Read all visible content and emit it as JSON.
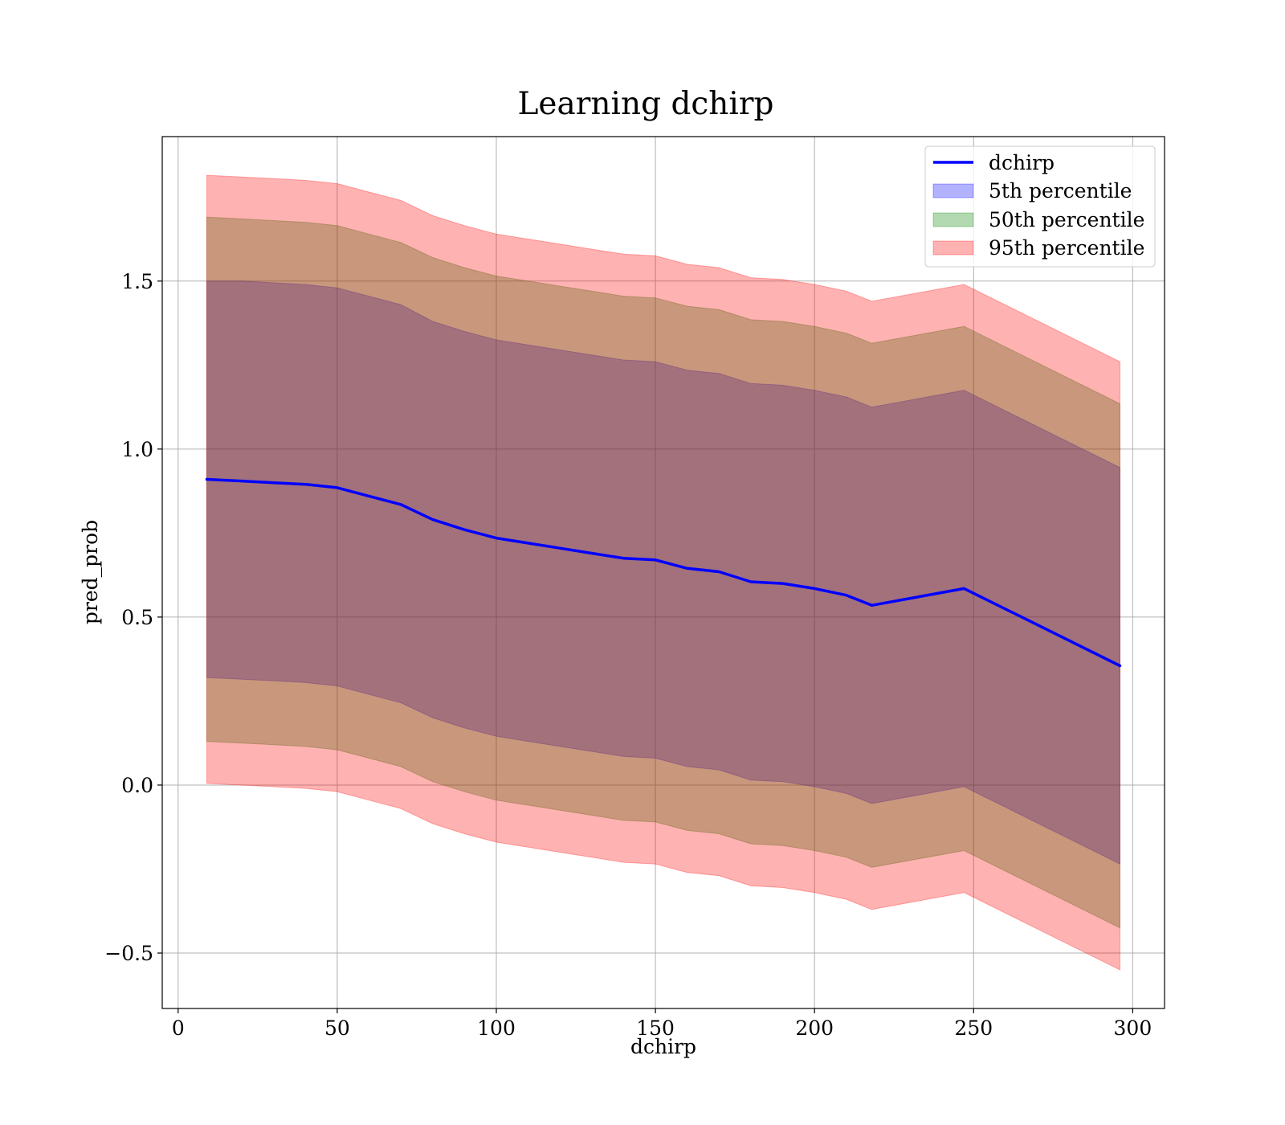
{
  "chart_data": {
    "type": "area",
    "title": "Learning dchirp",
    "xlabel": "dchirp",
    "ylabel": "pred_prob",
    "xlim": [
      -5,
      310
    ],
    "ylim": [
      -0.665,
      1.93
    ],
    "xticks": [
      0,
      50,
      100,
      150,
      200,
      250,
      300
    ],
    "xtick_labels": [
      "0",
      "50",
      "100",
      "150",
      "200",
      "250",
      "300"
    ],
    "yticks": [
      -0.5,
      0.0,
      0.5,
      1.0,
      1.5
    ],
    "ytick_labels": [
      "−0.5",
      "0.0",
      "0.5",
      "1.0",
      "1.5"
    ],
    "grid": true,
    "legend_position": "top-right",
    "x": [
      9,
      20,
      30,
      40,
      50,
      60,
      70,
      80,
      90,
      100,
      110,
      120,
      130,
      140,
      150,
      160,
      170,
      180,
      190,
      200,
      210,
      218,
      247,
      296
    ],
    "line": {
      "name": "dchirp",
      "color": "#0000ff",
      "values": [
        0.91,
        0.905,
        0.9,
        0.895,
        0.885,
        0.86,
        0.835,
        0.79,
        0.76,
        0.735,
        0.72,
        0.705,
        0.69,
        0.675,
        0.67,
        0.645,
        0.635,
        0.605,
        0.6,
        0.585,
        0.565,
        0.535,
        0.585,
        0.355
      ]
    },
    "bands": [
      {
        "name": "5th percentile",
        "color": "#0000ff",
        "opacity": 0.3,
        "upper": [
          1.5,
          1.5,
          1.495,
          1.49,
          1.48,
          1.455,
          1.43,
          1.38,
          1.35,
          1.325,
          1.31,
          1.295,
          1.28,
          1.265,
          1.26,
          1.235,
          1.225,
          1.195,
          1.19,
          1.175,
          1.155,
          1.125,
          1.175,
          0.945
        ],
        "lower": [
          0.32,
          0.315,
          0.31,
          0.305,
          0.295,
          0.27,
          0.245,
          0.2,
          0.17,
          0.145,
          0.13,
          0.115,
          0.1,
          0.085,
          0.08,
          0.055,
          0.045,
          0.015,
          0.01,
          -0.005,
          -0.025,
          -0.055,
          -0.005,
          -0.235
        ]
      },
      {
        "name": "50th percentile",
        "color": "#008000",
        "opacity": 0.3,
        "upper": [
          1.69,
          1.685,
          1.68,
          1.675,
          1.665,
          1.64,
          1.615,
          1.57,
          1.54,
          1.515,
          1.5,
          1.485,
          1.47,
          1.455,
          1.45,
          1.425,
          1.415,
          1.385,
          1.38,
          1.365,
          1.345,
          1.315,
          1.365,
          1.135
        ],
        "lower": [
          0.13,
          0.125,
          0.12,
          0.115,
          0.105,
          0.08,
          0.055,
          0.01,
          -0.02,
          -0.045,
          -0.06,
          -0.075,
          -0.09,
          -0.105,
          -0.11,
          -0.135,
          -0.145,
          -0.175,
          -0.18,
          -0.195,
          -0.215,
          -0.245,
          -0.195,
          -0.425
        ]
      },
      {
        "name": "95th percentile",
        "color": "#ff0000",
        "opacity": 0.3,
        "upper": [
          1.815,
          1.81,
          1.805,
          1.8,
          1.79,
          1.765,
          1.74,
          1.695,
          1.665,
          1.64,
          1.625,
          1.61,
          1.595,
          1.58,
          1.575,
          1.55,
          1.54,
          1.51,
          1.505,
          1.49,
          1.47,
          1.44,
          1.49,
          1.26
        ],
        "lower": [
          0.005,
          0.0,
          -0.005,
          -0.01,
          -0.02,
          -0.045,
          -0.07,
          -0.115,
          -0.145,
          -0.17,
          -0.185,
          -0.2,
          -0.215,
          -0.23,
          -0.235,
          -0.26,
          -0.27,
          -0.3,
          -0.305,
          -0.32,
          -0.34,
          -0.37,
          -0.32,
          -0.55
        ]
      }
    ],
    "legend": [
      "dchirp",
      "5th percentile",
      "50th percentile",
      "95th percentile"
    ]
  }
}
